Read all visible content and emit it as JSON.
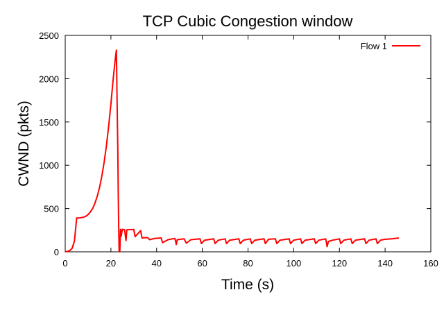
{
  "chart_data": {
    "type": "line",
    "title": "TCP Cubic Congestion window",
    "xlabel": "Time (s)",
    "ylabel": "CWND (pkts)",
    "xlim": [
      0,
      160
    ],
    "ylim": [
      0,
      2500
    ],
    "xticks": [
      0,
      20,
      40,
      60,
      80,
      100,
      120,
      140,
      160
    ],
    "yticks": [
      0,
      500,
      1000,
      1500,
      2000,
      2500
    ],
    "grid": false,
    "legend_position": "top-right",
    "series": [
      {
        "name": "Flow 1",
        "color": "#ff0000",
        "points": [
          [
            0,
            0
          ],
          [
            1,
            5
          ],
          [
            2,
            15
          ],
          [
            3,
            40
          ],
          [
            4,
            120
          ],
          [
            4.6,
            280
          ],
          [
            5,
            390
          ],
          [
            6,
            390
          ],
          [
            7,
            395
          ],
          [
            8,
            400
          ],
          [
            9,
            410
          ],
          [
            10,
            430
          ],
          [
            11,
            460
          ],
          [
            12,
            500
          ],
          [
            13,
            560
          ],
          [
            14,
            640
          ],
          [
            15,
            740
          ],
          [
            16,
            870
          ],
          [
            17,
            1030
          ],
          [
            18,
            1220
          ],
          [
            19,
            1450
          ],
          [
            20,
            1710
          ],
          [
            21,
            2000
          ],
          [
            22,
            2250
          ],
          [
            22.4,
            2330
          ],
          [
            22.7,
            1720
          ],
          [
            23.0,
            1200
          ],
          [
            23.2,
            700
          ],
          [
            23.4,
            300
          ],
          [
            23.6,
            10
          ],
          [
            23.9,
            0
          ],
          [
            24.2,
            260
          ],
          [
            24.5,
            180
          ],
          [
            25,
            260
          ],
          [
            26,
            255
          ],
          [
            26.6,
            130
          ],
          [
            27,
            255
          ],
          [
            30,
            258
          ],
          [
            30.6,
            175
          ],
          [
            33,
            245
          ],
          [
            33.6,
            160
          ],
          [
            36,
            165
          ],
          [
            37,
            140
          ],
          [
            39,
            155
          ],
          [
            42,
            160
          ],
          [
            42.6,
            105
          ],
          [
            45,
            140
          ],
          [
            48,
            155
          ],
          [
            48.6,
            85
          ],
          [
            49,
            140
          ],
          [
            52,
            150
          ],
          [
            53,
            100
          ],
          [
            55,
            140
          ],
          [
            59,
            150
          ],
          [
            59.6,
            95
          ],
          [
            61,
            135
          ],
          [
            65,
            150
          ],
          [
            65.6,
            95
          ],
          [
            67,
            135
          ],
          [
            70,
            150
          ],
          [
            70.6,
            95
          ],
          [
            72,
            135
          ],
          [
            76,
            150
          ],
          [
            76.6,
            95
          ],
          [
            78,
            135
          ],
          [
            81,
            150
          ],
          [
            81.6,
            95
          ],
          [
            83,
            135
          ],
          [
            87,
            150
          ],
          [
            87.6,
            95
          ],
          [
            89,
            145
          ],
          [
            92,
            150
          ],
          [
            92.6,
            95
          ],
          [
            94,
            135
          ],
          [
            98,
            150
          ],
          [
            98.6,
            95
          ],
          [
            100,
            135
          ],
          [
            103,
            150
          ],
          [
            103.6,
            95
          ],
          [
            105,
            135
          ],
          [
            109,
            150
          ],
          [
            109.6,
            95
          ],
          [
            111,
            135
          ],
          [
            114,
            150
          ],
          [
            114.6,
            60
          ],
          [
            115.2,
            120
          ],
          [
            117,
            135
          ],
          [
            120,
            150
          ],
          [
            120.6,
            95
          ],
          [
            122,
            135
          ],
          [
            125,
            150
          ],
          [
            125.6,
            95
          ],
          [
            127,
            135
          ],
          [
            131,
            150
          ],
          [
            131.6,
            95
          ],
          [
            133,
            135
          ],
          [
            136,
            150
          ],
          [
            136.6,
            95
          ],
          [
            138,
            135
          ],
          [
            140,
            145
          ],
          [
            143,
            150
          ],
          [
            146,
            160
          ]
        ]
      }
    ]
  }
}
